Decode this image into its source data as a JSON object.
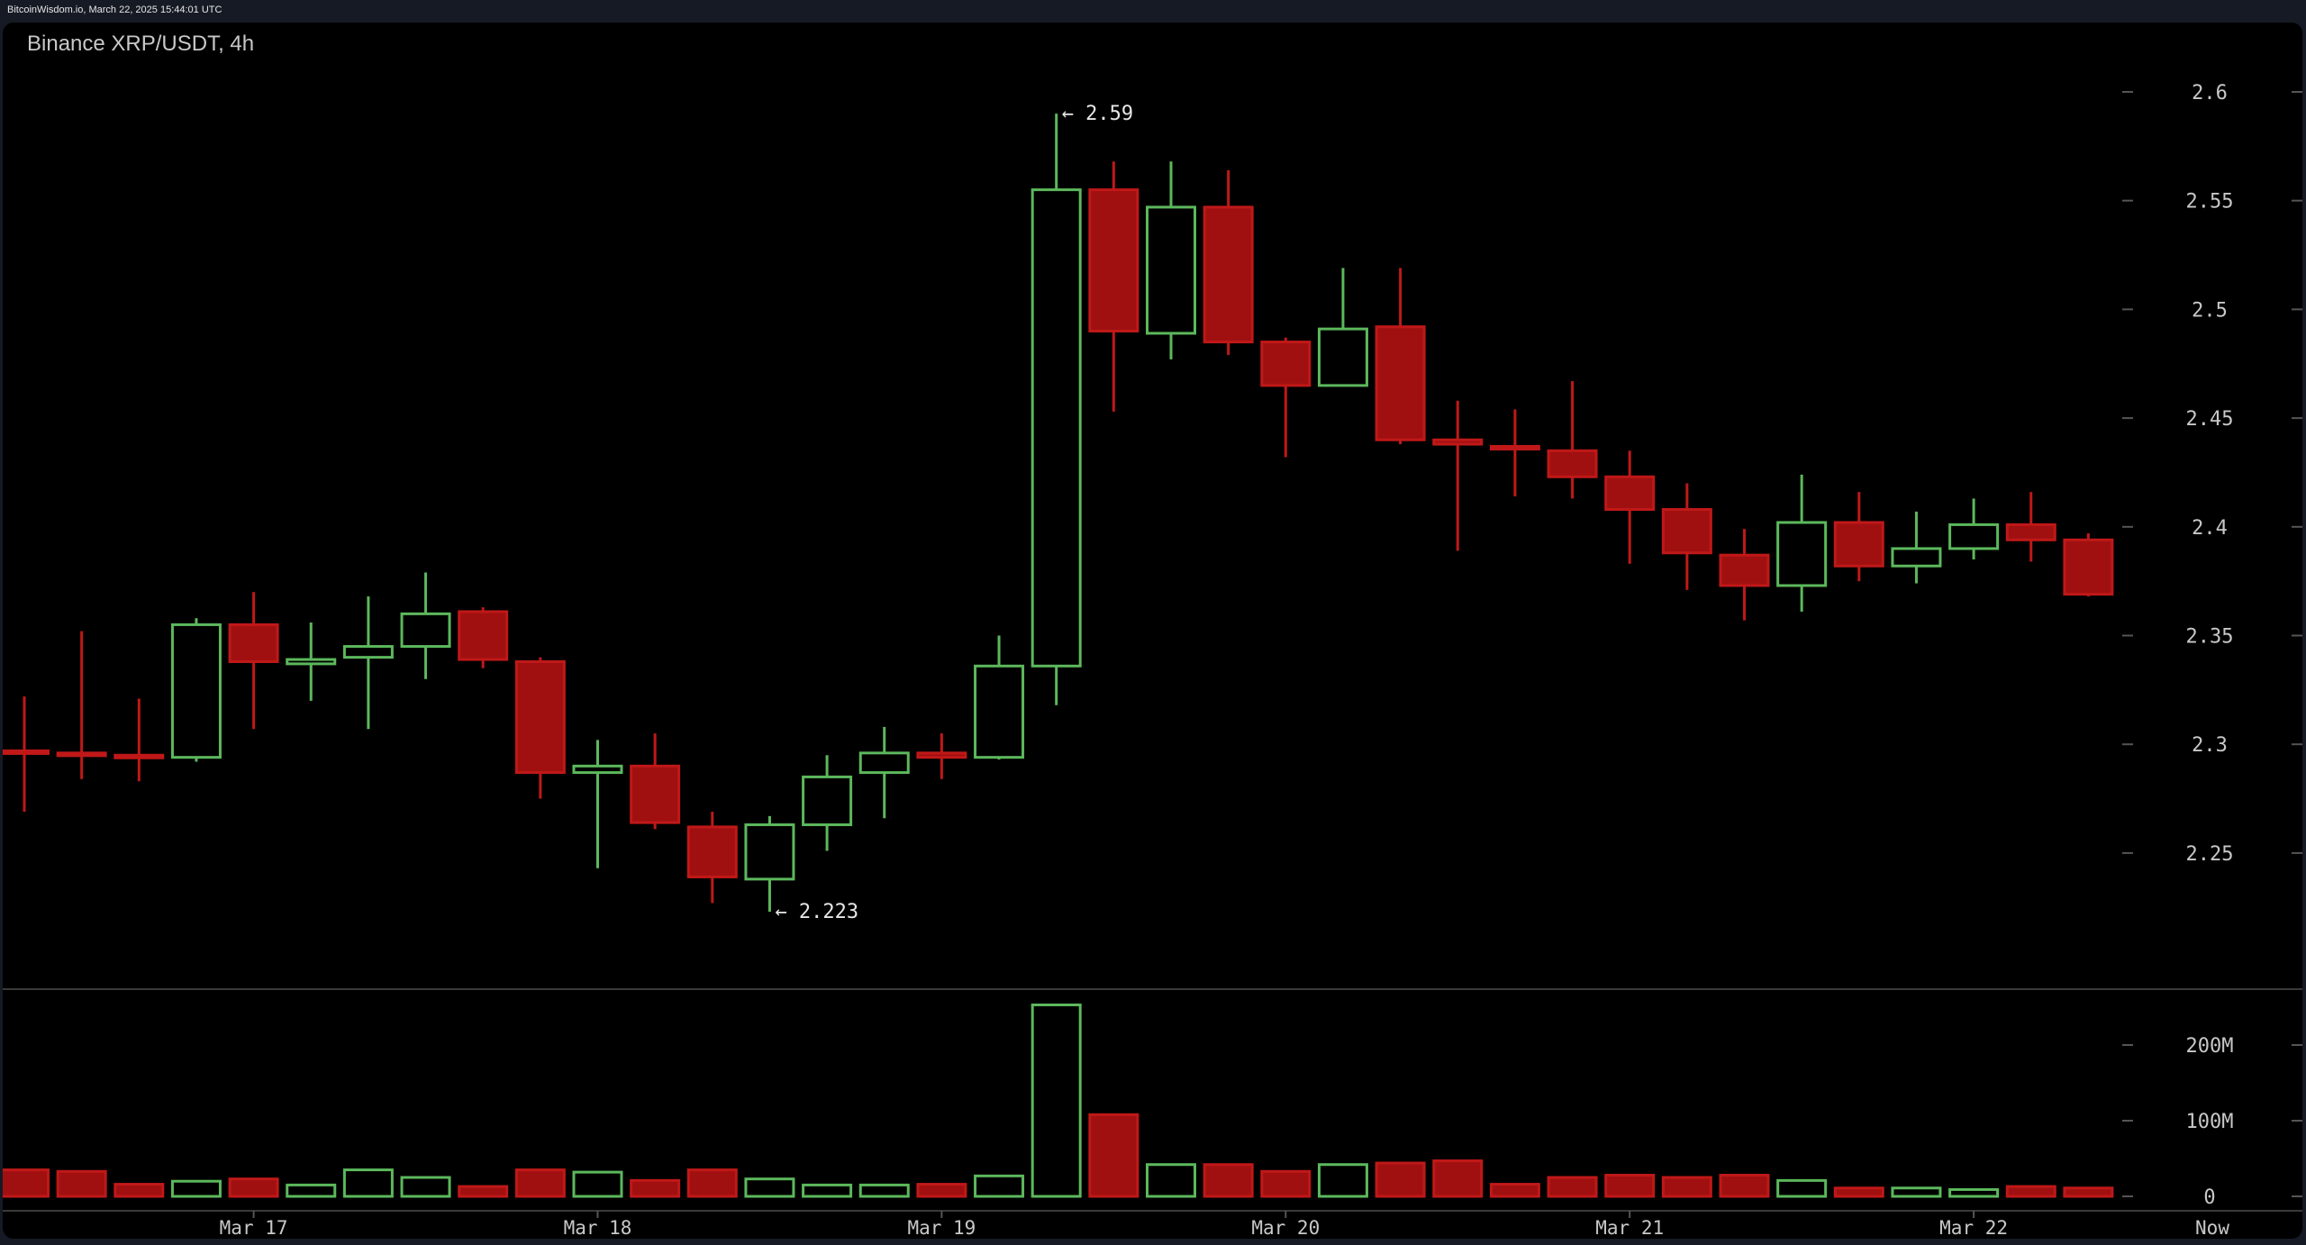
{
  "header": {
    "source_timestamp": "BitcoinWisdom.io, March 22, 2025 15:44:01 UTC",
    "title": "Binance XRP/USDT, 4h"
  },
  "colors": {
    "up": "#5cb85c",
    "down": "#a01010",
    "down_border": "#c01818",
    "background": "#000000",
    "frame": "#161a25",
    "text": "#c8c8c8",
    "grid_tick": "#555555"
  },
  "chart_data": {
    "type": "candlestick",
    "title": "Binance XRP/USDT, 4h",
    "xlabel": "",
    "ylabel": "",
    "ylim": [
      2.19,
      2.62
    ],
    "grid": false,
    "y_ticks": [
      "2.6",
      "2.55",
      "2.5",
      "2.45",
      "2.4",
      "2.35",
      "2.3",
      "2.25"
    ],
    "y_tick_values": [
      2.6,
      2.55,
      2.5,
      2.45,
      2.4,
      2.35,
      2.3,
      2.25
    ],
    "x_ticks": [
      {
        "label": "Mar 17",
        "index": 4
      },
      {
        "label": "Mar 18",
        "index": 10
      },
      {
        "label": "Mar 19",
        "index": 16
      },
      {
        "label": "Mar 20",
        "index": 22
      },
      {
        "label": "Mar 21",
        "index": 28
      },
      {
        "label": "Mar 22",
        "index": 34
      },
      {
        "label": "Now",
        "index": 38.1
      }
    ],
    "annotations": [
      {
        "label": "← 2.59",
        "index": 18,
        "price": 2.59,
        "type": "high"
      },
      {
        "label": "← 2.223",
        "index": 13,
        "price": 2.223,
        "type": "low"
      }
    ],
    "candles": [
      {
        "o": 2.297,
        "h": 2.322,
        "l": 2.269,
        "c": 2.296
      },
      {
        "o": 2.296,
        "h": 2.352,
        "l": 2.284,
        "c": 2.295
      },
      {
        "o": 2.295,
        "h": 2.321,
        "l": 2.283,
        "c": 2.294
      },
      {
        "o": 2.294,
        "h": 2.358,
        "l": 2.292,
        "c": 2.355
      },
      {
        "o": 2.355,
        "h": 2.37,
        "l": 2.307,
        "c": 2.338
      },
      {
        "o": 2.337,
        "h": 2.356,
        "l": 2.32,
        "c": 2.339
      },
      {
        "o": 2.34,
        "h": 2.368,
        "l": 2.307,
        "c": 2.345
      },
      {
        "o": 2.345,
        "h": 2.379,
        "l": 2.33,
        "c": 2.36
      },
      {
        "o": 2.361,
        "h": 2.363,
        "l": 2.335,
        "c": 2.339
      },
      {
        "o": 2.338,
        "h": 2.34,
        "l": 2.275,
        "c": 2.287
      },
      {
        "o": 2.287,
        "h": 2.302,
        "l": 2.243,
        "c": 2.29
      },
      {
        "o": 2.29,
        "h": 2.305,
        "l": 2.261,
        "c": 2.264
      },
      {
        "o": 2.262,
        "h": 2.269,
        "l": 2.227,
        "c": 2.239
      },
      {
        "o": 2.238,
        "h": 2.267,
        "l": 2.223,
        "c": 2.263
      },
      {
        "o": 2.263,
        "h": 2.295,
        "l": 2.251,
        "c": 2.285
      },
      {
        "o": 2.287,
        "h": 2.308,
        "l": 2.266,
        "c": 2.296
      },
      {
        "o": 2.296,
        "h": 2.305,
        "l": 2.284,
        "c": 2.294
      },
      {
        "o": 2.294,
        "h": 2.35,
        "l": 2.293,
        "c": 2.336
      },
      {
        "o": 2.336,
        "h": 2.59,
        "l": 2.318,
        "c": 2.555
      },
      {
        "o": 2.555,
        "h": 2.568,
        "l": 2.453,
        "c": 2.49
      },
      {
        "o": 2.489,
        "h": 2.568,
        "l": 2.477,
        "c": 2.547
      },
      {
        "o": 2.547,
        "h": 2.564,
        "l": 2.479,
        "c": 2.485
      },
      {
        "o": 2.485,
        "h": 2.487,
        "l": 2.432,
        "c": 2.465
      },
      {
        "o": 2.465,
        "h": 2.519,
        "l": 2.465,
        "c": 2.491
      },
      {
        "o": 2.492,
        "h": 2.519,
        "l": 2.438,
        "c": 2.44
      },
      {
        "o": 2.44,
        "h": 2.458,
        "l": 2.389,
        "c": 2.438
      },
      {
        "o": 2.437,
        "h": 2.454,
        "l": 2.414,
        "c": 2.436
      },
      {
        "o": 2.435,
        "h": 2.467,
        "l": 2.413,
        "c": 2.423
      },
      {
        "o": 2.423,
        "h": 2.435,
        "l": 2.383,
        "c": 2.408
      },
      {
        "o": 2.408,
        "h": 2.42,
        "l": 2.371,
        "c": 2.388
      },
      {
        "o": 2.387,
        "h": 2.399,
        "l": 2.357,
        "c": 2.373
      },
      {
        "o": 2.373,
        "h": 2.424,
        "l": 2.361,
        "c": 2.402
      },
      {
        "o": 2.402,
        "h": 2.416,
        "l": 2.375,
        "c": 2.382
      },
      {
        "o": 2.382,
        "h": 2.407,
        "l": 2.374,
        "c": 2.39
      },
      {
        "o": 2.39,
        "h": 2.413,
        "l": 2.385,
        "c": 2.401
      },
      {
        "o": 2.401,
        "h": 2.416,
        "l": 2.384,
        "c": 2.394
      },
      {
        "o": 2.394,
        "h": 2.397,
        "l": 2.368,
        "c": 2.369
      }
    ],
    "volume": {
      "unit": "M",
      "y_ticks": [
        "200M",
        "100M",
        "0"
      ],
      "y_tick_values": [
        200,
        100,
        0
      ],
      "values": [
        35,
        33,
        16,
        20,
        23,
        15,
        35,
        25,
        13,
        35,
        32,
        21,
        35,
        23,
        15,
        15,
        16,
        27,
        253,
        108,
        42,
        42,
        33,
        42,
        44,
        47,
        16,
        25,
        28,
        25,
        28,
        21,
        11,
        11,
        9,
        13,
        11
      ]
    }
  }
}
